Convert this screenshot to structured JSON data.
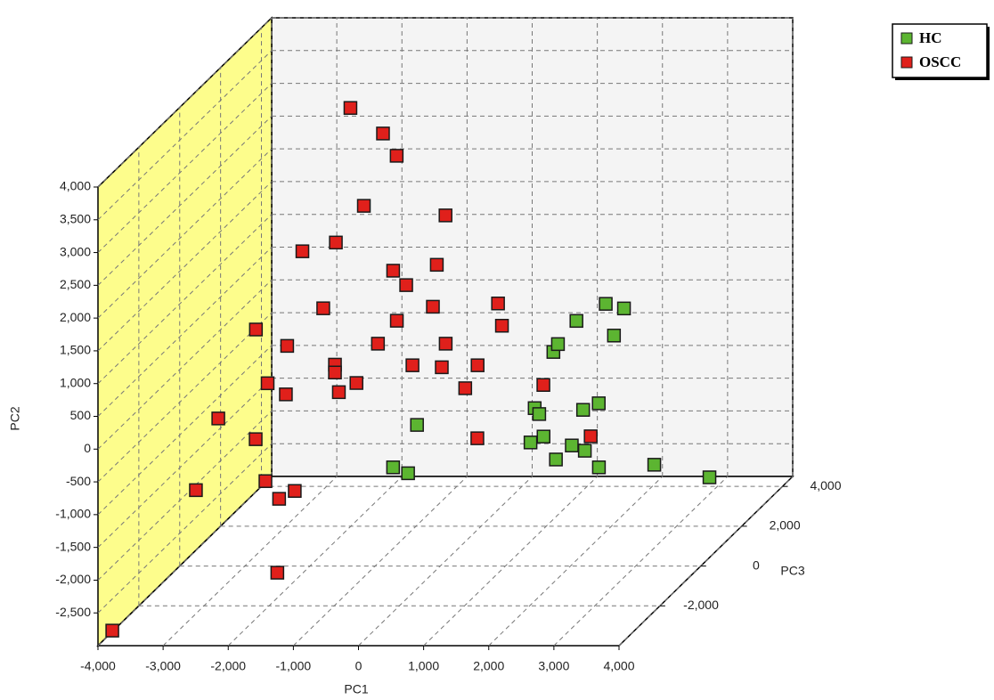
{
  "chart_data": {
    "type": "scatter3d",
    "x_label": "PC1",
    "y_label": "PC2",
    "z_label": "PC3",
    "xlim": [
      -4000,
      4000
    ],
    "ylim": [
      -3000,
      4000
    ],
    "zlim": [
      -4000,
      4500
    ],
    "xticks": [
      {
        "value": -4000,
        "label": "-4,000"
      },
      {
        "value": -3000,
        "label": "-3,000"
      },
      {
        "value": -2000,
        "label": "-2,000"
      },
      {
        "value": -1000,
        "label": "-1,000"
      },
      0,
      {
        "value": 1000,
        "label": "1,000"
      },
      {
        "value": 2000,
        "label": "2,000"
      },
      {
        "value": 3000,
        "label": "3,000"
      },
      {
        "value": 4000,
        "label": "4,000"
      }
    ],
    "yticks": [
      {
        "value": -2500,
        "label": "-2,500"
      },
      {
        "value": -2000,
        "label": "-2,000"
      },
      {
        "value": -1500,
        "label": "-1,500"
      },
      {
        "value": -1000,
        "label": "-1,000"
      },
      -500,
      0,
      500,
      {
        "value": 1000,
        "label": "1,000"
      },
      {
        "value": 1500,
        "label": "1,500"
      },
      {
        "value": 2000,
        "label": "2,000"
      },
      {
        "value": 2500,
        "label": "2,500"
      },
      {
        "value": 3000,
        "label": "3,000"
      },
      {
        "value": 3500,
        "label": "3,500"
      },
      {
        "value": 4000,
        "label": "4,000"
      }
    ],
    "zticks": [
      {
        "value": -2000,
        "label": "-2,000"
      },
      0,
      {
        "value": 2000,
        "label": "2,000"
      },
      {
        "value": 4000,
        "label": "4,000"
      }
    ],
    "grid": true,
    "legend_position": "top-right",
    "series": [
      {
        "name": "HC",
        "color": "#5cb531",
        "x": [
          -670,
          -410,
          -180,
          1450,
          1520,
          1700,
          1900,
          2090,
          1110,
          1180,
          1150,
          2020,
          1880,
          2220,
          2120,
          2750,
          1600,
          1880,
          2040,
          3600,
          3820
        ],
        "y": [
          -1150,
          -1190,
          -1280,
          -590,
          -680,
          -810,
          -720,
          -1070,
          -340,
          -220,
          -170,
          -1160,
          -920,
          -1240,
          -820,
          -1190,
          90,
          20,
          -90,
          -1150,
          -1950
        ],
        "z": [
          1000,
          -1000,
          -1000,
          0,
          0,
          -1000,
          -1000,
          -1000,
          2000,
          2000,
          3000,
          0,
          1000,
          0,
          1000,
          -1000,
          3000,
          3000,
          2000,
          -1000,
          1000
        ]
      },
      {
        "name": "OSCC",
        "color": "#e0201b",
        "x": [
          -3780,
          -2810,
          -2780,
          -2520,
          -2830,
          -2650,
          -2370,
          -2160,
          -1920,
          -1560,
          -2370,
          -2350,
          -2430,
          -2110,
          -2230,
          -1930,
          -1930,
          -1870,
          -2320,
          -1600,
          -1800,
          -1270,
          -1820,
          -1350,
          -1610,
          -980,
          -1150,
          -740,
          -740,
          -680,
          -290,
          -860,
          -230,
          70,
          260,
          570,
          260,
          320,
          1270,
          2310
        ],
        "y": [
          -2770,
          -930,
          -140,
          -760,
          610,
          -210,
          -1400,
          -1670,
          -1550,
          -2190,
          -380,
          360,
          1500,
          630,
          1330,
          -230,
          -350,
          -650,
          3080,
          -510,
          1890,
          90,
          2690,
          900,
          2350,
          440,
          680,
          -240,
          350,
          990,
          -270,
          1440,
          90,
          -590,
          -240,
          -1050,
          400,
          60,
          -540,
          -1020
        ],
        "z": [
          -4000,
          -3000,
          -2000,
          -1000,
          0,
          0,
          -1000,
          -1000,
          -1000,
          -3000,
          0,
          0,
          1000,
          1000,
          2000,
          1000,
          1000,
          1000,
          3000,
          1000,
          2000,
          1000,
          3000,
          2000,
          3000,
          1000,
          2000,
          1000,
          2000,
          2000,
          1000,
          3000,
          1000,
          1000,
          1000,
          0,
          2000,
          2000,
          1000,
          0
        ]
      }
    ]
  }
}
